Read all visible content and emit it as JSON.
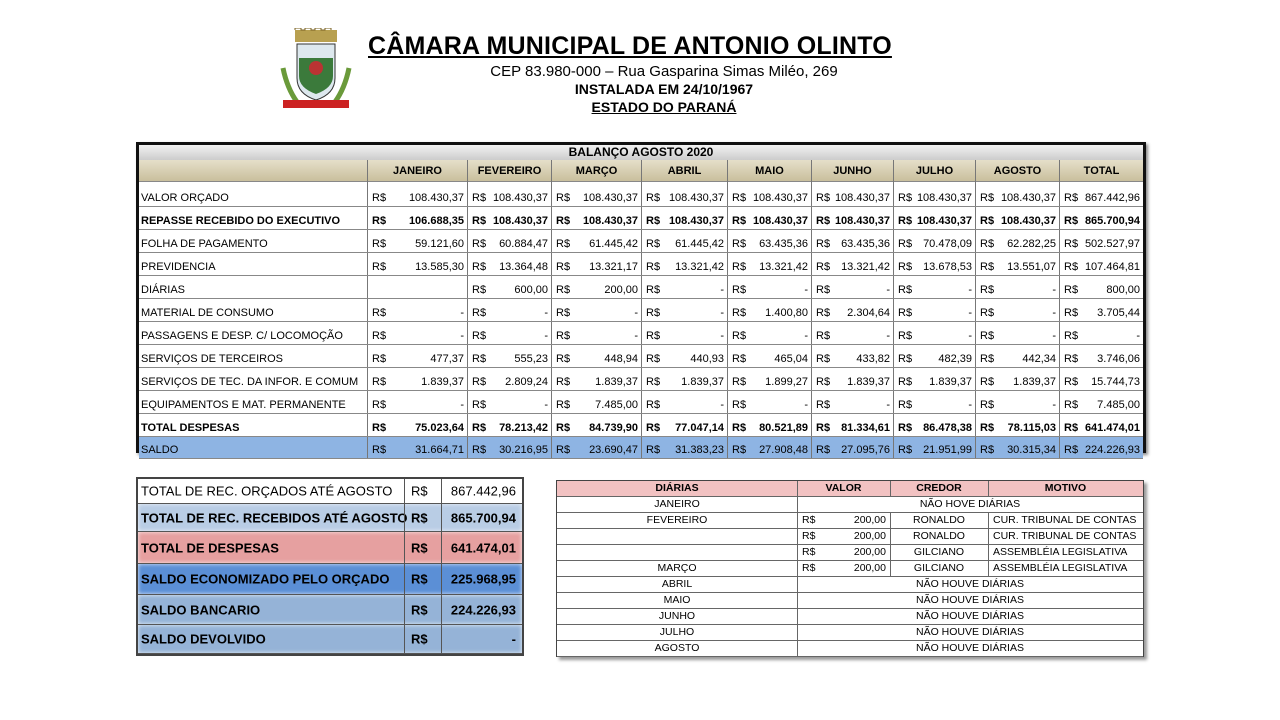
{
  "header": {
    "title": "CÂMARA MUNICIPAL DE ANTONIO OLINTO",
    "address": "CEP 83.980-000 – Rua Gasparina Simas Miléo, 269",
    "installed": "INSTALADA EM 24/10/1967",
    "state": "ESTADO DO PARANÁ",
    "logo_icon": "municipal-coat-of-arms"
  },
  "main": {
    "title": "BALANÇO AGOSTO 2020",
    "currency": "R$",
    "columns": [
      "JANEIRO",
      "FEVEREIRO",
      "MARÇO",
      "ABRIL",
      "MAIO",
      "JUNHO",
      "JULHO",
      "AGOSTO",
      "TOTAL"
    ],
    "rows": [
      {
        "label": "VALOR ORÇADO",
        "values": [
          "108.430,37",
          "108.430,37",
          "108.430,37",
          "108.430,37",
          "108.430,37",
          "108.430,37",
          "108.430,37",
          "108.430,37",
          "867.442,96"
        ]
      },
      {
        "label": "REPASSE RECEBIDO DO EXECUTIVO",
        "bold": true,
        "values": [
          "106.688,35",
          "108.430,37",
          "108.430,37",
          "108.430,37",
          "108.430,37",
          "108.430,37",
          "108.430,37",
          "108.430,37",
          "865.700,94"
        ]
      },
      {
        "label": "FOLHA DE PAGAMENTO",
        "values": [
          "59.121,60",
          "60.884,47",
          "61.445,42",
          "61.445,42",
          "63.435,36",
          "63.435,36",
          "70.478,09",
          "62.282,25",
          "502.527,97"
        ]
      },
      {
        "label": "PREVIDENCIA",
        "values": [
          "13.585,30",
          "13.364,48",
          "13.321,17",
          "13.321,42",
          "13.321,42",
          "13.321,42",
          "13.678,53",
          "13.551,07",
          "107.464,81"
        ]
      },
      {
        "label": "DIÁRIAS",
        "values": [
          null,
          "600,00",
          "200,00",
          "-",
          "-",
          "-",
          "-",
          "-",
          "800,00"
        ]
      },
      {
        "label": "MATERIAL DE CONSUMO",
        "values": [
          "-",
          "-",
          "-",
          "-",
          "1.400,80",
          "2.304,64",
          "-",
          "-",
          "3.705,44"
        ]
      },
      {
        "label": "PASSAGENS E DESP. C/ LOCOMOÇÃO",
        "values": [
          "-",
          "-",
          "-",
          "-",
          "-",
          "-",
          "-",
          "-",
          "-"
        ]
      },
      {
        "label": "SERVIÇOS DE TERCEIROS",
        "values": [
          "477,37",
          "555,23",
          "448,94",
          "440,93",
          "465,04",
          "433,82",
          "482,39",
          "442,34",
          "3.746,06"
        ]
      },
      {
        "label": "SERVIÇOS DE TEC. DA INFOR. E COMUM",
        "values": [
          "1.839,37",
          "2.809,24",
          "1.839,37",
          "1.839,37",
          "1.899,27",
          "1.839,37",
          "1.839,37",
          "1.839,37",
          "15.744,73"
        ]
      },
      {
        "label": "EQUIPAMENTOS E MAT. PERMANENTE",
        "values": [
          "-",
          "-",
          "7.485,00",
          "-",
          "-",
          "-",
          "-",
          "-",
          "7.485,00"
        ]
      },
      {
        "label": "TOTAL DESPESAS",
        "bold": true,
        "values": [
          "75.023,64",
          "78.213,42",
          "84.739,90",
          "77.047,14",
          "80.521,89",
          "81.334,61",
          "86.478,38",
          "78.115,03",
          "641.474,01"
        ]
      },
      {
        "label": "SALDO",
        "saldo": true,
        "values": [
          "31.664,71",
          "30.216,95",
          "23.690,47",
          "31.383,23",
          "27.908,48",
          "27.095,76",
          "21.951,99",
          "30.315,34",
          "224.226,93"
        ]
      }
    ]
  },
  "summary": {
    "rows": [
      {
        "label": "TOTAL DE REC. ORÇADOS ATÉ AGOSTO",
        "currency": "R$",
        "value": "867.442,96",
        "color": "#ffffff"
      },
      {
        "label": "TOTAL DE REC. RECEBIDOS ATÉ AGOSTO",
        "currency": "R$",
        "value": "865.700,94",
        "color": "#b9cde5",
        "bold": true
      },
      {
        "label": "TOTAL DE DESPESAS",
        "currency": "R$",
        "value": "641.474,01",
        "color": "#e6a0a0",
        "bold": true
      },
      {
        "label": "SALDO ECONOMIZADO PELO ORÇADO",
        "currency": "R$",
        "value": "225.968,95",
        "color": "#5b8fd6",
        "bold": true
      },
      {
        "label": "SALDO BANCARIO",
        "currency": "R$",
        "value": "224.226,93",
        "color": "#95b3d7",
        "bold": true
      },
      {
        "label": "SALDO DEVOLVIDO",
        "currency": "R$",
        "value": "-",
        "color": "#95b3d7",
        "bold": true
      }
    ]
  },
  "diarias": {
    "headers": [
      "DIÁRIAS",
      "VALOR",
      "CREDOR",
      "MOTIVO"
    ],
    "header_color": "#f2c2c2",
    "rows": [
      {
        "month": "JANEIRO",
        "note": "NÃO HOVE DIÁRIAS"
      },
      {
        "month": "FEVEREIRO",
        "currency": "R$",
        "value": "200,00",
        "credor": "RONALDO",
        "motivo": "CUR. TRIBUNAL DE CONTAS"
      },
      {
        "month": "",
        "currency": "R$",
        "value": "200,00",
        "credor": "RONALDO",
        "motivo": "CUR. TRIBUNAL DE CONTAS"
      },
      {
        "month": "",
        "currency": "R$",
        "value": "200,00",
        "credor": "GILCIANO",
        "motivo": "ASSEMBLÉIA LEGISLATIVA"
      },
      {
        "month": "MARÇO",
        "currency": "R$",
        "value": "200,00",
        "credor": "GILCIANO",
        "motivo": "ASSEMBLÉIA LEGISLATIVA"
      },
      {
        "month": "ABRIL",
        "note": "NÃO HOUVE DIÁRIAS"
      },
      {
        "month": "MAIO",
        "note": "NÃO HOUVE DIÁRIAS"
      },
      {
        "month": "JUNHO",
        "note": "NÃO HOUVE DIÁRIAS"
      },
      {
        "month": "JULHO",
        "note": "NÃO HOUVE DIÁRIAS"
      },
      {
        "month": "AGOSTO",
        "note": "NÃO HOUVE DIÁRIAS"
      }
    ]
  }
}
